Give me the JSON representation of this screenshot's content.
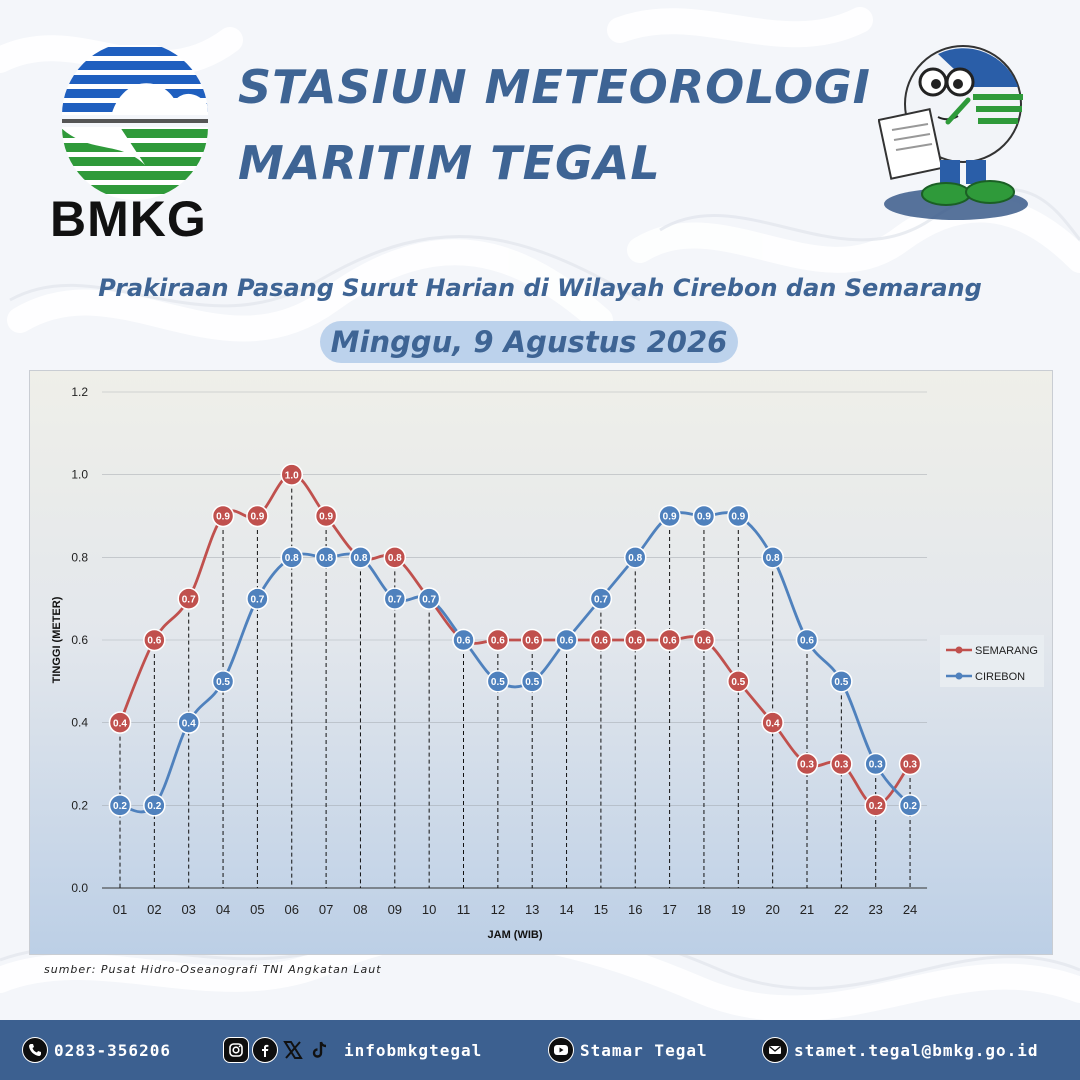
{
  "header": {
    "logo_text": "BMKG",
    "title_line1": "STASIUN METEOROLOGI",
    "title_line2": "MARITIM TEGAL",
    "subtitle": "Prakiraan Pasang Surut Harian di Wilayah Cirebon dan Semarang",
    "date": "Minggu, 9 Agustus 2026"
  },
  "colors": {
    "brand_blue": "#3e6494",
    "semarang": "#c0504d",
    "cirebon": "#4f81bd",
    "footer_bg": "#3c6090"
  },
  "chart_data": {
    "type": "line",
    "xlabel": "JAM (WIB)",
    "ylabel": "TINGGI (METER)",
    "ylim": [
      0,
      1.2
    ],
    "yticks": [
      "0.0",
      "0.2",
      "0.4",
      "0.6",
      "0.8",
      "1.0",
      "1.2"
    ],
    "grid": true,
    "legend_position": "right",
    "categories": [
      "01",
      "02",
      "03",
      "04",
      "05",
      "06",
      "07",
      "08",
      "09",
      "10",
      "11",
      "12",
      "13",
      "14",
      "15",
      "16",
      "17",
      "18",
      "19",
      "20",
      "21",
      "22",
      "23",
      "24"
    ],
    "series": [
      {
        "name": "SEMARANG",
        "color": "#c0504d",
        "values": [
          0.4,
          0.6,
          0.7,
          0.9,
          0.9,
          1.0,
          0.9,
          0.8,
          0.8,
          0.7,
          0.6,
          0.6,
          0.6,
          0.6,
          0.6,
          0.6,
          0.6,
          0.6,
          0.5,
          0.4,
          0.3,
          0.3,
          0.2,
          0.3
        ]
      },
      {
        "name": "CIREBON",
        "color": "#4f81bd",
        "values": [
          0.2,
          0.2,
          0.4,
          0.5,
          0.7,
          0.8,
          0.8,
          0.8,
          0.7,
          0.7,
          0.6,
          0.5,
          0.5,
          0.6,
          0.7,
          0.8,
          0.9,
          0.9,
          0.9,
          0.8,
          0.6,
          0.5,
          0.3,
          0.2
        ]
      }
    ]
  },
  "source": "sumber: Pusat Hidro-Oseanografi TNI Angkatan Laut",
  "footer": {
    "phone": "0283-356206",
    "social": "infobmkgtegal",
    "youtube": "Stamar Tegal",
    "email": "stamet.tegal@bmkg.go.id",
    "icons": [
      "phone-icon",
      "instagram-icon",
      "facebook-icon",
      "x-icon",
      "tiktok-icon",
      "youtube-icon",
      "email-icon"
    ]
  }
}
